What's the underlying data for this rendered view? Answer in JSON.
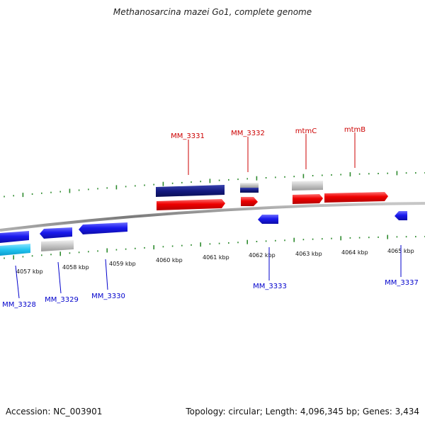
{
  "title": "Methanosarcina mazei Go1, complete genome",
  "footer": {
    "accession": "Accession: NC_003901",
    "summary": "Topology: circular; Length: 4,096,345 bp; Genes: 3,434"
  },
  "scale": {
    "unit": "kbp",
    "labels": [
      "4057 kbp",
      "4058 kbp",
      "4059 kbp",
      "4060 kbp",
      "4061 kbp",
      "4062 kbp",
      "4063 kbp",
      "4064 kbp",
      "4065 kbp"
    ]
  },
  "gene_labels_forward": [
    "MM_3331",
    "MM_3332",
    "mtmC",
    "mtmB"
  ],
  "gene_labels_reverse": [
    "MM_3328",
    "MM_3329",
    "MM_3330",
    "MM_3333",
    "MM_3337"
  ],
  "colors": {
    "forward_cds": "#ee0000",
    "reverse_cds": "#1a1aee",
    "gene_outer_dark": "#141a80",
    "gene_outer_cyan": "#22c4f0",
    "gene_outer_gray": "#c4c4c4",
    "tick": "#2e8b2e",
    "backbone": "#8a8a8a",
    "label_forward": "#cc0000",
    "label_reverse": "#0000cc",
    "leader_forward": "#cc0000",
    "leader_reverse": "#0000cc"
  }
}
